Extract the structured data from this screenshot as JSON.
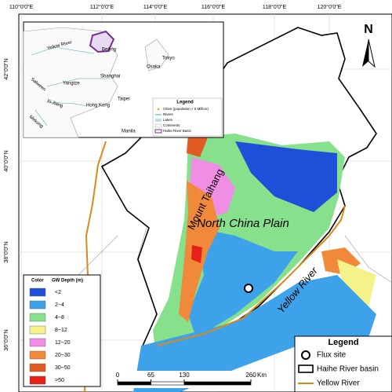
{
  "axes": {
    "top": [
      "110°0'0\"E",
      "112°0'0\"E",
      "114°0'0\"E",
      "116°0'0\"E",
      "118°0'0\"E",
      "120°0'0\"E"
    ],
    "left": [
      "42°0'0\"N",
      "40°0'0\"N",
      "38°0'0\"N",
      "36°0'0\"N"
    ]
  },
  "inset": {
    "labels": [
      "Beijing",
      "Yellow River",
      "Tokyo",
      "Osaka",
      "Shanghai",
      "Salween",
      "Yangtze",
      "Taipei",
      "Xi Jiang",
      "Hong Kong",
      "Mekong",
      "Manila"
    ],
    "legend": {
      "title": "Legend",
      "items": [
        "Cities (population > 5 Million)",
        "Rivers",
        "Lakes",
        "Continents",
        "Haihe River Basin"
      ]
    }
  },
  "north": "N",
  "map_labels": {
    "mountain": "Mount Taihang",
    "plain": "North China Plain",
    "river": "Yellow River"
  },
  "gw_legend": {
    "header": [
      "Color",
      "GW Depth (m)"
    ],
    "classes": [
      {
        "label": "<2",
        "color": "#1f4fd8"
      },
      {
        "label": "2~4",
        "color": "#3ea2ea"
      },
      {
        "label": "4~8",
        "color": "#86e08c"
      },
      {
        "label": "8~12",
        "color": "#f6f28a"
      },
      {
        "label": "12~20",
        "color": "#f08ee6"
      },
      {
        "label": "20~30",
        "color": "#f08a3a"
      },
      {
        "label": "30~50",
        "color": "#e05a22"
      },
      {
        "label": ">50",
        "color": "#e8201a"
      }
    ]
  },
  "legend": {
    "title": "Legend",
    "items": [
      "Flux site",
      "Haihe River basin",
      "Yellow River"
    ]
  },
  "scale": {
    "ticks": [
      0,
      65,
      130,
      260
    ],
    "unit": "Km"
  }
}
